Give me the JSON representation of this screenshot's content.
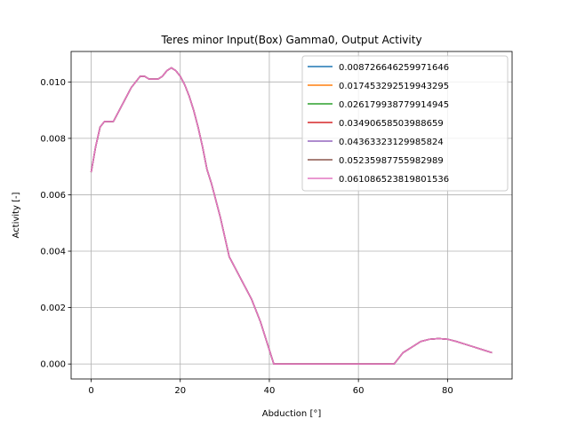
{
  "chart_data": {
    "type": "line",
    "title": "Teres minor Input(Box) Gamma0, Output Activity",
    "xlabel": "Abduction [°]",
    "ylabel": "Activity [-]",
    "xlim": [
      -4.5,
      94.5
    ],
    "ylim": [
      -0.00053,
      0.01108
    ],
    "xticks": [
      0,
      20,
      40,
      60,
      80
    ],
    "yticks": [
      0.0,
      0.002,
      0.004,
      0.006,
      0.008,
      0.01
    ],
    "ytick_labels": [
      "0.000",
      "0.002",
      "0.004",
      "0.006",
      "0.008",
      "0.010"
    ],
    "grid": true,
    "legend_position": "top-right",
    "x": [
      0,
      1,
      2,
      3,
      4,
      5,
      6,
      7,
      8,
      9,
      10,
      11,
      12,
      13,
      14,
      15,
      16,
      17,
      18,
      19,
      20,
      21,
      22,
      23,
      24,
      25,
      26,
      27,
      28,
      29,
      30,
      31,
      32,
      33,
      34,
      35,
      36,
      37,
      38,
      39,
      40,
      41,
      45,
      50,
      55,
      60,
      65,
      68,
      69,
      70,
      72,
      74,
      76,
      78,
      80,
      82,
      84,
      86,
      88,
      90
    ],
    "series": [
      {
        "name": "0.008726646259971646",
        "color": "#1f77b4",
        "values": [
          0.0068,
          0.0077,
          0.0084,
          0.0086,
          0.0086,
          0.0086,
          0.0089,
          0.0092,
          0.0095,
          0.0098,
          0.01,
          0.0102,
          0.0102,
          0.0101,
          0.0101,
          0.0101,
          0.0102,
          0.0104,
          0.0105,
          0.0104,
          0.0102,
          0.0099,
          0.0095,
          0.009,
          0.0084,
          0.0077,
          0.0069,
          0.0064,
          0.0058,
          0.0052,
          0.0045,
          0.0038,
          0.0035,
          0.0032,
          0.0029,
          0.0026,
          0.0023,
          0.0019,
          0.0015,
          0.001,
          0.0005,
          0.0,
          0.0,
          0.0,
          0.0,
          0.0,
          0.0,
          0.0,
          0.0002,
          0.0004,
          0.0006,
          0.0008,
          0.00088,
          0.0009,
          0.00088,
          0.0008,
          0.0007,
          0.0006,
          0.0005,
          0.0004
        ]
      },
      {
        "name": "0.017453292519943295",
        "color": "#ff7f0e",
        "values": [
          0.0068,
          0.0077,
          0.0084,
          0.0086,
          0.0086,
          0.0086,
          0.0089,
          0.0092,
          0.0095,
          0.0098,
          0.01,
          0.0102,
          0.0102,
          0.0101,
          0.0101,
          0.0101,
          0.0102,
          0.0104,
          0.0105,
          0.0104,
          0.0102,
          0.0099,
          0.0095,
          0.009,
          0.0084,
          0.0077,
          0.0069,
          0.0064,
          0.0058,
          0.0052,
          0.0045,
          0.0038,
          0.0035,
          0.0032,
          0.0029,
          0.0026,
          0.0023,
          0.0019,
          0.0015,
          0.001,
          0.0005,
          0.0,
          0.0,
          0.0,
          0.0,
          0.0,
          0.0,
          0.0,
          0.0002,
          0.0004,
          0.0006,
          0.0008,
          0.00088,
          0.0009,
          0.00088,
          0.0008,
          0.0007,
          0.0006,
          0.0005,
          0.0004
        ]
      },
      {
        "name": "0.026179938779914945",
        "color": "#2ca02c",
        "values": [
          0.0068,
          0.0077,
          0.0084,
          0.0086,
          0.0086,
          0.0086,
          0.0089,
          0.0092,
          0.0095,
          0.0098,
          0.01,
          0.0102,
          0.0102,
          0.0101,
          0.0101,
          0.0101,
          0.0102,
          0.0104,
          0.0105,
          0.0104,
          0.0102,
          0.0099,
          0.0095,
          0.009,
          0.0084,
          0.0077,
          0.0069,
          0.0064,
          0.0058,
          0.0052,
          0.0045,
          0.0038,
          0.0035,
          0.0032,
          0.0029,
          0.0026,
          0.0023,
          0.0019,
          0.0015,
          0.001,
          0.0005,
          0.0,
          0.0,
          0.0,
          0.0,
          0.0,
          0.0,
          0.0,
          0.0002,
          0.0004,
          0.0006,
          0.0008,
          0.00088,
          0.0009,
          0.00088,
          0.0008,
          0.0007,
          0.0006,
          0.0005,
          0.0004
        ]
      },
      {
        "name": "0.03490658503988659",
        "color": "#d62728",
        "values": [
          0.0068,
          0.0077,
          0.0084,
          0.0086,
          0.0086,
          0.0086,
          0.0089,
          0.0092,
          0.0095,
          0.0098,
          0.01,
          0.0102,
          0.0102,
          0.0101,
          0.0101,
          0.0101,
          0.0102,
          0.0104,
          0.0105,
          0.0104,
          0.0102,
          0.0099,
          0.0095,
          0.009,
          0.0084,
          0.0077,
          0.0069,
          0.0064,
          0.0058,
          0.0052,
          0.0045,
          0.0038,
          0.0035,
          0.0032,
          0.0029,
          0.0026,
          0.0023,
          0.0019,
          0.0015,
          0.001,
          0.0005,
          0.0,
          0.0,
          0.0,
          0.0,
          0.0,
          0.0,
          0.0,
          0.0002,
          0.0004,
          0.0006,
          0.0008,
          0.00088,
          0.0009,
          0.00088,
          0.0008,
          0.0007,
          0.0006,
          0.0005,
          0.0004
        ]
      },
      {
        "name": "0.04363323129985824",
        "color": "#9467bd",
        "values": [
          0.0068,
          0.0077,
          0.0084,
          0.0086,
          0.0086,
          0.0086,
          0.0089,
          0.0092,
          0.0095,
          0.0098,
          0.01,
          0.0102,
          0.0102,
          0.0101,
          0.0101,
          0.0101,
          0.0102,
          0.0104,
          0.0105,
          0.0104,
          0.0102,
          0.0099,
          0.0095,
          0.009,
          0.0084,
          0.0077,
          0.0069,
          0.0064,
          0.0058,
          0.0052,
          0.0045,
          0.0038,
          0.0035,
          0.0032,
          0.0029,
          0.0026,
          0.0023,
          0.0019,
          0.0015,
          0.001,
          0.0005,
          0.0,
          0.0,
          0.0,
          0.0,
          0.0,
          0.0,
          0.0,
          0.0002,
          0.0004,
          0.0006,
          0.0008,
          0.00088,
          0.0009,
          0.00088,
          0.0008,
          0.0007,
          0.0006,
          0.0005,
          0.0004
        ]
      },
      {
        "name": "0.05235987755982989",
        "color": "#8c564b",
        "values": [
          0.0068,
          0.0077,
          0.0084,
          0.0086,
          0.0086,
          0.0086,
          0.0089,
          0.0092,
          0.0095,
          0.0098,
          0.01,
          0.0102,
          0.0102,
          0.0101,
          0.0101,
          0.0101,
          0.0102,
          0.0104,
          0.0105,
          0.0104,
          0.0102,
          0.0099,
          0.0095,
          0.009,
          0.0084,
          0.0077,
          0.0069,
          0.0064,
          0.0058,
          0.0052,
          0.0045,
          0.0038,
          0.0035,
          0.0032,
          0.0029,
          0.0026,
          0.0023,
          0.0019,
          0.0015,
          0.001,
          0.0005,
          0.0,
          0.0,
          0.0,
          0.0,
          0.0,
          0.0,
          0.0,
          0.0002,
          0.0004,
          0.0006,
          0.0008,
          0.00088,
          0.0009,
          0.00088,
          0.0008,
          0.0007,
          0.0006,
          0.0005,
          0.0004
        ]
      },
      {
        "name": "0.061086523819801536",
        "color": "#e377c2",
        "values": [
          0.0068,
          0.0077,
          0.0084,
          0.0086,
          0.0086,
          0.0086,
          0.0089,
          0.0092,
          0.0095,
          0.0098,
          0.01,
          0.0102,
          0.0102,
          0.0101,
          0.0101,
          0.0101,
          0.0102,
          0.0104,
          0.0105,
          0.0104,
          0.0102,
          0.0099,
          0.0095,
          0.009,
          0.0084,
          0.0077,
          0.0069,
          0.0064,
          0.0058,
          0.0052,
          0.0045,
          0.0038,
          0.0035,
          0.0032,
          0.0029,
          0.0026,
          0.0023,
          0.0019,
          0.0015,
          0.001,
          0.0005,
          0.0,
          0.0,
          0.0,
          0.0,
          0.0,
          0.0,
          0.0,
          0.0002,
          0.0004,
          0.0006,
          0.0008,
          0.00088,
          0.0009,
          0.00088,
          0.0008,
          0.0007,
          0.0006,
          0.0005,
          0.0004
        ]
      }
    ]
  }
}
